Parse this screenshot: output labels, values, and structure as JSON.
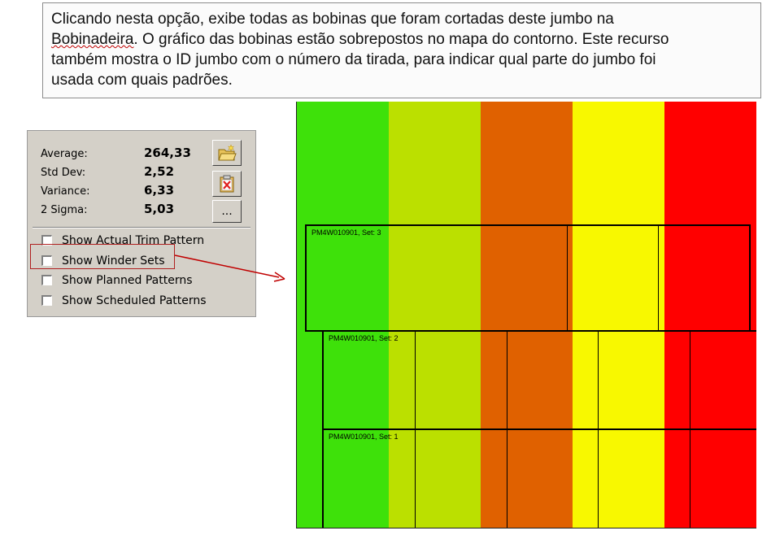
{
  "callout": {
    "line1": "Clicando nesta opção, exibe todas as bobinas que foram cortadas deste jumbo na",
    "line2_underlined": "Bobinadeira",
    "line2_rest": ". O gráfico das bobinas estão sobrepostos no mapa do contorno. Este recurso",
    "line3": "também mostra o ID jumbo com o número da tirada, para indicar qual parte do jumbo foi",
    "line4": "usada com quais padrões."
  },
  "stats": [
    {
      "label": "Average:",
      "value": "264,33"
    },
    {
      "label": "Std Dev:",
      "value": "2,52"
    },
    {
      "label": "Variance:",
      "value": "6,33"
    },
    {
      "label": "2 Sigma:",
      "value": "5,03"
    }
  ],
  "buttons": {
    "more_label": "..."
  },
  "options": [
    {
      "label": "Show Actual Trim Pattern",
      "checked": false
    },
    {
      "label": "Show Winder Sets",
      "checked": false
    },
    {
      "label": "Show Planned Patterns",
      "checked": false
    },
    {
      "label": "Show Scheduled Patterns",
      "checked": false
    }
  ],
  "map": {
    "bands": [
      "#3ee10a",
      "#bbe000",
      "#e06100",
      "#f8f800",
      "#ff0000"
    ],
    "sets": [
      {
        "label": "PM4W010901, Set: 3"
      },
      {
        "label": "PM4W010901, Set: 2"
      },
      {
        "label": "PM4W010901, Set: 1"
      }
    ]
  },
  "colors": {
    "highlight_border": "#b02020",
    "arrow": "#c00000"
  }
}
